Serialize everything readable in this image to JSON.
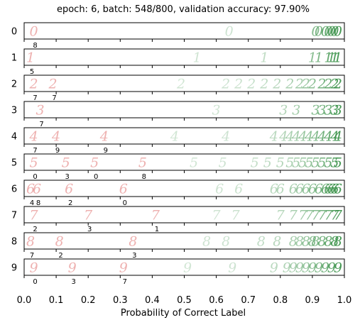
{
  "chart_data": {
    "type": "scatter",
    "title": "epoch: 6, batch: 548/800, validation accuracy: 97.90%",
    "xlabel": "Probability of Correct Label",
    "ylabel": "",
    "xlim": [
      0.0,
      1.0
    ],
    "x_ticks": [
      "0.0",
      "0.1",
      "0.2",
      "0.3",
      "0.4",
      "0.5",
      "0.6",
      "0.7",
      "0.8",
      "0.9",
      "1.0"
    ],
    "grid": false,
    "colors": {
      "correct": "#2e8b3d",
      "incorrect": "#d9534f"
    },
    "rows": [
      {
        "digit": "0",
        "correct_points": [
          0.64,
          0.91,
          0.92,
          0.94,
          0.95,
          0.96,
          0.97,
          0.98
        ],
        "incorrect_points": [
          {
            "x": 0.03,
            "label": "8"
          }
        ]
      },
      {
        "digit": "1",
        "correct_points": [
          0.54,
          0.75,
          0.9,
          0.92,
          0.95,
          0.96,
          0.97,
          0.98
        ],
        "incorrect_points": [
          {
            "x": 0.02,
            "label": "5"
          }
        ]
      },
      {
        "digit": "2",
        "correct_points": [
          0.49,
          0.63,
          0.67,
          0.71,
          0.75,
          0.79,
          0.83,
          0.86,
          0.88,
          0.9,
          0.93,
          0.95,
          0.97,
          0.98
        ],
        "incorrect_points": [
          {
            "x": 0.03,
            "label": "7"
          },
          {
            "x": 0.09,
            "label": "7"
          }
        ]
      },
      {
        "digit": "3",
        "correct_points": [
          0.6,
          0.81,
          0.85,
          0.91,
          0.93,
          0.95,
          0.97,
          0.98
        ],
        "incorrect_points": [
          {
            "x": 0.05,
            "label": "7"
          }
        ]
      },
      {
        "digit": "4",
        "correct_points": [
          0.47,
          0.63,
          0.78,
          0.81,
          0.83,
          0.85,
          0.87,
          0.89,
          0.91,
          0.93,
          0.95,
          0.97,
          0.98
        ],
        "incorrect_points": [
          {
            "x": 0.03,
            "label": "7"
          },
          {
            "x": 0.1,
            "label": "9"
          },
          {
            "x": 0.25,
            "label": "9"
          }
        ]
      },
      {
        "digit": "5",
        "correct_points": [
          0.53,
          0.62,
          0.72,
          0.76,
          0.8,
          0.83,
          0.85,
          0.87,
          0.89,
          0.91,
          0.93,
          0.95,
          0.97,
          0.98
        ],
        "incorrect_points": [
          {
            "x": 0.03,
            "label": "0"
          },
          {
            "x": 0.13,
            "label": "3"
          },
          {
            "x": 0.22,
            "label": "0"
          },
          {
            "x": 0.37,
            "label": "8"
          }
        ]
      },
      {
        "digit": "6",
        "correct_points": [
          0.61,
          0.67,
          0.78,
          0.8,
          0.84,
          0.86,
          0.88,
          0.9,
          0.92,
          0.94,
          0.95,
          0.96,
          0.97,
          0.98
        ],
        "incorrect_points": [
          {
            "x": 0.02,
            "label": "4"
          },
          {
            "x": 0.04,
            "label": "8"
          },
          {
            "x": 0.14,
            "label": "2"
          },
          {
            "x": 0.31,
            "label": "0"
          }
        ]
      },
      {
        "digit": "7",
        "correct_points": [
          0.6,
          0.66,
          0.8,
          0.84,
          0.87,
          0.89,
          0.91,
          0.93,
          0.95,
          0.97,
          0.98
        ],
        "incorrect_points": [
          {
            "x": 0.03,
            "label": "2"
          },
          {
            "x": 0.2,
            "label": "3"
          },
          {
            "x": 0.41,
            "label": "1"
          }
        ]
      },
      {
        "digit": "8",
        "correct_points": [
          0.57,
          0.63,
          0.74,
          0.79,
          0.84,
          0.86,
          0.88,
          0.9,
          0.91,
          0.93,
          0.95,
          0.97,
          0.98
        ],
        "incorrect_points": [
          {
            "x": 0.02,
            "label": "7"
          },
          {
            "x": 0.11,
            "label": "2"
          },
          {
            "x": 0.34,
            "label": "3"
          }
        ]
      },
      {
        "digit": "9",
        "correct_points": [
          0.51,
          0.65,
          0.78,
          0.82,
          0.84,
          0.86,
          0.88,
          0.9,
          0.92,
          0.94,
          0.96,
          0.98
        ],
        "incorrect_points": [
          {
            "x": 0.03,
            "label": "0"
          },
          {
            "x": 0.15,
            "label": "3"
          },
          {
            "x": 0.31,
            "label": "7"
          }
        ]
      }
    ]
  }
}
